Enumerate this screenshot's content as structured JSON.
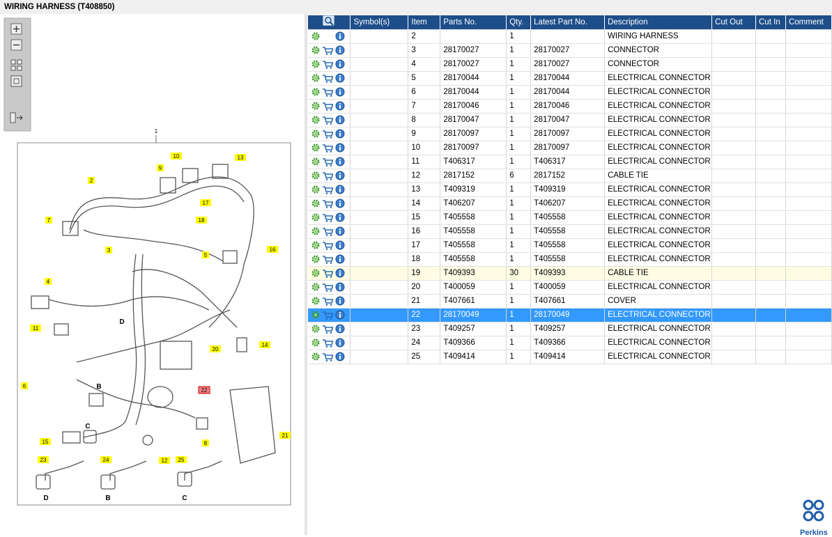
{
  "header": {
    "title": "WIRING HARNESS (T408850)"
  },
  "diagram": {
    "callouts": [
      {
        "text": "1",
        "style": "plain"
      },
      {
        "text": "10",
        "style": "yellow"
      },
      {
        "text": "13",
        "style": "yellow"
      },
      {
        "text": "9",
        "style": "yellow"
      },
      {
        "text": "2",
        "style": "yellow"
      },
      {
        "text": "17",
        "style": "yellow"
      },
      {
        "text": "7",
        "style": "yellow"
      },
      {
        "text": "18",
        "style": "yellow"
      },
      {
        "text": "3",
        "style": "yellow"
      },
      {
        "text": "5",
        "style": "yellow"
      },
      {
        "text": "16",
        "style": "yellow"
      },
      {
        "text": "4",
        "style": "yellow"
      },
      {
        "text": "11",
        "style": "yellow"
      },
      {
        "text": "D",
        "style": "plain"
      },
      {
        "text": "14",
        "style": "yellow"
      },
      {
        "text": "20",
        "style": "yellow"
      },
      {
        "text": "6",
        "style": "yellow"
      },
      {
        "text": "B",
        "style": "plain"
      },
      {
        "text": "22",
        "style": "red"
      },
      {
        "text": "C",
        "style": "plain"
      },
      {
        "text": "15",
        "style": "yellow"
      },
      {
        "text": "8",
        "style": "yellow"
      },
      {
        "text": "21",
        "style": "yellow"
      },
      {
        "text": "12",
        "style": "yellow"
      },
      {
        "text": "23",
        "style": "yellow"
      },
      {
        "text": "24",
        "style": "yellow"
      },
      {
        "text": "25",
        "style": "yellow"
      },
      {
        "text": "D",
        "style": "plain"
      },
      {
        "text": "B",
        "style": "plain"
      },
      {
        "text": "C",
        "style": "plain"
      }
    ]
  },
  "table": {
    "columns": [
      "Symbol(s)",
      "Item",
      "Parts No.",
      "Qty.",
      "Latest Part No.",
      "Description",
      "Cut Out",
      "Cut In",
      "Comment"
    ],
    "rows": [
      {
        "item": "2",
        "qty": "1",
        "description": "WIRING HARNESS",
        "cart": false
      },
      {
        "item": "3",
        "parts_no": "28170027",
        "qty": "1",
        "latest": "28170027",
        "description": "CONNECTOR",
        "cart": true
      },
      {
        "item": "4",
        "parts_no": "28170027",
        "qty": "1",
        "latest": "28170027",
        "description": "CONNECTOR",
        "cart": true
      },
      {
        "item": "5",
        "parts_no": "28170044",
        "qty": "1",
        "latest": "28170044",
        "description": "ELECTRICAL CONNECTOR",
        "cart": true
      },
      {
        "item": "6",
        "parts_no": "28170044",
        "qty": "1",
        "latest": "28170044",
        "description": "ELECTRICAL CONNECTOR",
        "cart": true
      },
      {
        "item": "7",
        "parts_no": "28170046",
        "qty": "1",
        "latest": "28170046",
        "description": "ELECTRICAL CONNECTOR",
        "cart": true
      },
      {
        "item": "8",
        "parts_no": "28170047",
        "qty": "1",
        "latest": "28170047",
        "description": "ELECTRICAL CONNECTOR",
        "cart": true
      },
      {
        "item": "9",
        "parts_no": "28170097",
        "qty": "1",
        "latest": "28170097",
        "description": "ELECTRICAL CONNECTOR",
        "cart": true
      },
      {
        "item": "10",
        "parts_no": "28170097",
        "qty": "1",
        "latest": "28170097",
        "description": "ELECTRICAL CONNECTOR",
        "cart": true
      },
      {
        "item": "11",
        "parts_no": "T406317",
        "qty": "1",
        "latest": "T406317",
        "description": "ELECTRICAL CONNECTOR",
        "cart": true
      },
      {
        "item": "12",
        "parts_no": "2817152",
        "qty": "6",
        "latest": "2817152",
        "description": "CABLE TIE",
        "cart": true
      },
      {
        "item": "13",
        "parts_no": "T409319",
        "qty": "1",
        "latest": "T409319",
        "description": "ELECTRICAL CONNECTOR",
        "cart": true
      },
      {
        "item": "14",
        "parts_no": "T406207",
        "qty": "1",
        "latest": "T406207",
        "description": "ELECTRICAL CONNECTOR",
        "cart": true
      },
      {
        "item": "15",
        "parts_no": "T405558",
        "qty": "1",
        "latest": "T405558",
        "description": "ELECTRICAL CONNECTOR",
        "cart": true
      },
      {
        "item": "16",
        "parts_no": "T405558",
        "qty": "1",
        "latest": "T405558",
        "description": "ELECTRICAL CONNECTOR",
        "cart": true
      },
      {
        "item": "17",
        "parts_no": "T405558",
        "qty": "1",
        "latest": "T405558",
        "description": "ELECTRICAL CONNECTOR",
        "cart": true
      },
      {
        "item": "18",
        "parts_no": "T405558",
        "qty": "1",
        "latest": "T405558",
        "description": "ELECTRICAL CONNECTOR",
        "cart": true
      },
      {
        "item": "19",
        "parts_no": "T409393",
        "qty": "30",
        "latest": "T409393",
        "description": "CABLE TIE",
        "cart": true,
        "highlighted": true
      },
      {
        "item": "20",
        "parts_no": "T400059",
        "qty": "1",
        "latest": "T400059",
        "description": "ELECTRICAL CONNECTOR",
        "cart": true
      },
      {
        "item": "21",
        "parts_no": "T407661",
        "qty": "1",
        "latest": "T407661",
        "description": "COVER",
        "cart": true
      },
      {
        "item": "22",
        "parts_no": "28170049",
        "qty": "1",
        "latest": "28170049",
        "description": "ELECTRICAL CONNECTOR",
        "cart": true,
        "selected": true
      },
      {
        "item": "23",
        "parts_no": "T409257",
        "qty": "1",
        "latest": "T409257",
        "description": "ELECTRICAL CONNECTOR",
        "cart": true
      },
      {
        "item": "24",
        "parts_no": "T409366",
        "qty": "1",
        "latest": "T409366",
        "description": "ELECTRICAL CONNECTOR",
        "cart": true
      },
      {
        "item": "25",
        "parts_no": "T409414",
        "qty": "1",
        "latest": "T409414",
        "description": "ELECTRICAL CONNECTOR",
        "cart": true
      }
    ]
  },
  "logo": {
    "text": "Perkins"
  }
}
